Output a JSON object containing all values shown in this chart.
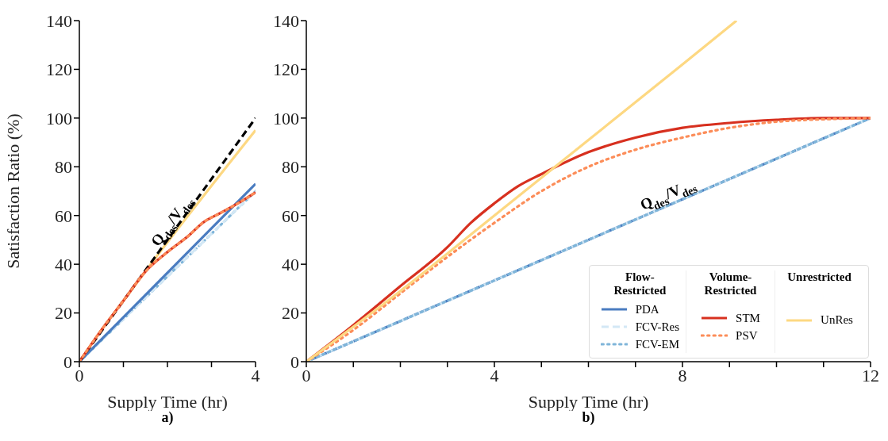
{
  "chart_data": [
    {
      "type": "line",
      "ylabel": "Satisfaction Ratio (%)",
      "xlabel": "Supply Time (hr)",
      "annotations": [
        "a)"
      ],
      "xlim": [
        0,
        4
      ],
      "xticks": [
        0,
        {
          "value": 1,
          "label": null
        },
        {
          "value": 2,
          "label": null
        },
        {
          "value": 3,
          "label": null
        },
        4
      ],
      "ylim": [
        0,
        140
      ],
      "yticks": [
        0,
        20,
        40,
        60,
        80,
        100,
        120,
        140
      ],
      "legend": false,
      "marker": "none",
      "series": [
        {
          "color": "#7fb5d9",
          "line_style": "dotted",
          "x": [
            0,
            4
          ],
          "values": [
            0,
            70
          ]
        },
        {
          "color": "#d3e8f5",
          "line_style": "dashed",
          "x": [
            0,
            4
          ],
          "values": [
            0,
            70
          ]
        },
        {
          "color": "#4a7cc0",
          "line_style": "solid",
          "x": [
            0,
            4
          ],
          "values": [
            0,
            73
          ]
        },
        {
          "color": "#fdd882",
          "line_style": "solid",
          "x": [
            0,
            0.5,
            1,
            1.62,
            4
          ],
          "values": [
            0,
            13,
            25,
            40,
            95
          ]
        },
        {
          "name": "Q$_{des}$/V$_{des}$",
          "color": "#000000",
          "line_style": "dashed",
          "x": [
            0,
            4
          ],
          "values": [
            0,
            100
          ]
        },
        {
          "color": "#d7301f",
          "line_style": "solid",
          "x": [
            0,
            0.5,
            1,
            1.5,
            2,
            2.5,
            2.8,
            3.2,
            3.6,
            4
          ],
          "values": [
            0,
            13,
            25,
            37,
            45,
            52,
            57,
            61,
            65,
            69.5
          ]
        },
        {
          "color": "#fc8d59",
          "line_style": "dotted",
          "x": [
            0,
            0.5,
            1,
            1.5,
            2,
            2.5,
            2.8,
            3.2,
            3.6,
            4
          ],
          "values": [
            0,
            13,
            25,
            37,
            45,
            52,
            57,
            61,
            65,
            69.5
          ]
        }
      ]
    },
    {
      "type": "line",
      "xlabel": "Supply Time (hr)",
      "annotations": [
        "b)",
        "Flow-Restricted",
        "Volume-Restricted",
        "Unrestricted",
        "Q$_{des}$/V$_{des}$"
      ],
      "xlim": [
        0,
        12
      ],
      "xticks": [
        0,
        {
          "value": 1,
          "label": null
        },
        {
          "value": 2,
          "label": null
        },
        {
          "value": 3,
          "label": null
        },
        4,
        {
          "value": 5,
          "label": null
        },
        {
          "value": 6,
          "label": null
        },
        {
          "value": 7,
          "label": null
        },
        8,
        {
          "value": 9,
          "label": null
        },
        {
          "value": 10,
          "label": null
        },
        {
          "value": 11,
          "label": null
        },
        12
      ],
      "ylim": [
        0,
        140
      ],
      "yticks": [
        0,
        20,
        40,
        60,
        80,
        100,
        120,
        140
      ],
      "legend": "bottom right",
      "marker": "none",
      "series": [
        {
          "name": "PDA",
          "color": "#4a7cc0",
          "line_style": "solid",
          "x": [
            0,
            12
          ],
          "values": [
            0,
            100
          ]
        },
        {
          "name": "FCV-Res",
          "color": "#d3e8f5",
          "line_style": "dashed",
          "x": [
            0,
            12
          ],
          "values": [
            0,
            100
          ]
        },
        {
          "name": "FCV-EM",
          "color": "#7fb5d9",
          "line_style": "dotted",
          "x": [
            0,
            12
          ],
          "values": [
            0,
            100
          ]
        },
        {
          "name": "STM",
          "color": "#d7301f",
          "line_style": "solid",
          "x": [
            0,
            1,
            2,
            3,
            3.5,
            4,
            4.5,
            5,
            6,
            7,
            8,
            9,
            10,
            11,
            12
          ],
          "values": [
            0,
            15,
            31,
            47,
            57,
            65,
            72,
            77,
            86,
            92,
            96,
            98,
            99.3,
            100,
            100
          ]
        },
        {
          "name": "PSV",
          "color": "#fc8d59",
          "line_style": "dotted",
          "x": [
            0,
            1,
            2,
            3,
            4,
            5,
            6,
            7,
            8,
            9,
            10,
            11,
            12
          ],
          "values": [
            0,
            13,
            28,
            43,
            57,
            70,
            80,
            87,
            92,
            96,
            98.5,
            99.5,
            100
          ]
        },
        {
          "name": "UnRes",
          "color": "#fdd882",
          "line_style": "solid",
          "x": [
            0,
            2,
            4,
            6,
            8,
            9.15
          ],
          "values": [
            0,
            29,
            60,
            91,
            122,
            140
          ]
        }
      ]
    }
  ]
}
